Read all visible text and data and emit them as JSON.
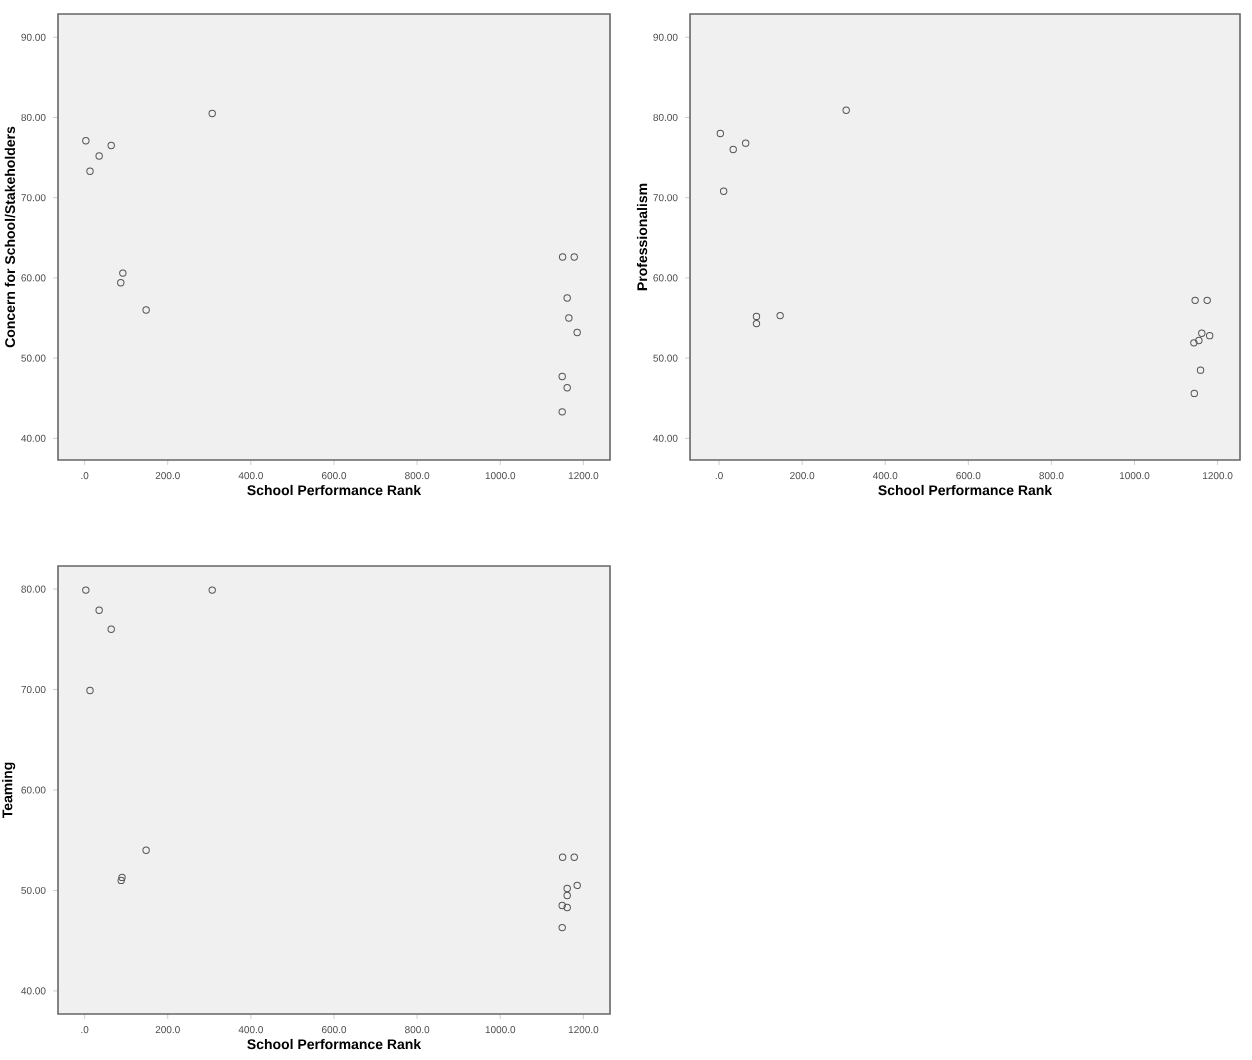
{
  "chart_data": [
    {
      "type": "scatter",
      "xlabel": "School Performance Rank",
      "ylabel": "Concern for School/Stakeholders",
      "marker": "circle",
      "color": "#555555",
      "x": [
        3,
        13,
        35,
        64,
        307,
        92,
        87,
        148,
        1150,
        1178,
        1161,
        1165,
        1185,
        1149,
        1161,
        1149
      ],
      "values": [
        77.1,
        73.3,
        75.2,
        76.5,
        80.5,
        60.6,
        59.4,
        56.0,
        62.6,
        62.6,
        57.5,
        55.0,
        53.2,
        47.7,
        46.3,
        43.3
      ],
      "xlim": [
        -64,
        1264
      ],
      "ylim": [
        37.3,
        92.9
      ],
      "xticks": [
        {
          "value": 0,
          "label": ".0"
        },
        {
          "value": 200,
          "label": "200.0"
        },
        {
          "value": 400,
          "label": "400.0"
        },
        {
          "value": 600,
          "label": "600.0"
        },
        {
          "value": 800,
          "label": "800.0"
        },
        {
          "value": 1000,
          "label": "1000.0"
        },
        {
          "value": 1200,
          "label": "1200.0"
        }
      ],
      "yticks": [
        {
          "value": 40,
          "label": "40.00"
        },
        {
          "value": 50,
          "label": "50.00"
        },
        {
          "value": 60,
          "label": "60.00"
        },
        {
          "value": 70,
          "label": "70.00"
        },
        {
          "value": 80,
          "label": "80.00"
        },
        {
          "value": 90,
          "label": "90.00"
        }
      ]
    },
    {
      "type": "scatter",
      "xlabel": "School Performance Rank",
      "ylabel": "Professionalism",
      "marker": "circle",
      "color": "#555555",
      "x": [
        3,
        11,
        34,
        64,
        306,
        90,
        90,
        147,
        1146,
        1175,
        1162,
        1155,
        1143,
        1181,
        1159,
        1144
      ],
      "values": [
        78.0,
        70.8,
        76.0,
        76.8,
        80.9,
        55.2,
        54.3,
        55.3,
        57.2,
        57.2,
        53.1,
        52.2,
        51.9,
        52.8,
        48.5,
        45.6
      ],
      "xlim": [
        -70,
        1254
      ],
      "ylim": [
        37.3,
        92.9
      ],
      "xticks": [
        {
          "value": 0,
          "label": ".0"
        },
        {
          "value": 200,
          "label": "200.0"
        },
        {
          "value": 400,
          "label": "400.0"
        },
        {
          "value": 600,
          "label": "600.0"
        },
        {
          "value": 800,
          "label": "800.0"
        },
        {
          "value": 1000,
          "label": "1000.0"
        },
        {
          "value": 1200,
          "label": "1200.0"
        }
      ],
      "yticks": [
        {
          "value": 40,
          "label": "40.00"
        },
        {
          "value": 50,
          "label": "50.00"
        },
        {
          "value": 60,
          "label": "60.00"
        },
        {
          "value": 70,
          "label": "70.00"
        },
        {
          "value": 80,
          "label": "80.00"
        },
        {
          "value": 90,
          "label": "90.00"
        }
      ]
    },
    {
      "type": "scatter",
      "xlabel": "School Performance Rank",
      "ylabel": "Teaming",
      "marker": "circle",
      "color": "#555555",
      "x": [
        3,
        13,
        35,
        64,
        307,
        90,
        88,
        148,
        1150,
        1178,
        1161,
        1185,
        1161,
        1149,
        1161,
        1149
      ],
      "values": [
        79.9,
        69.9,
        77.9,
        76.0,
        79.9,
        51.3,
        51.0,
        54.0,
        53.3,
        53.3,
        50.2,
        50.5,
        49.5,
        48.5,
        48.3,
        46.3
      ],
      "xlim": [
        -64,
        1264
      ],
      "ylim": [
        37.7,
        82.3
      ],
      "xticks": [
        {
          "value": 0,
          "label": ".0"
        },
        {
          "value": 200,
          "label": "200.0"
        },
        {
          "value": 400,
          "label": "400.0"
        },
        {
          "value": 600,
          "label": "600.0"
        },
        {
          "value": 800,
          "label": "800.0"
        },
        {
          "value": 1000,
          "label": "1000.0"
        },
        {
          "value": 1200,
          "label": "1200.0"
        }
      ],
      "yticks": [
        {
          "value": 40,
          "label": "40.00"
        },
        {
          "value": 50,
          "label": "50.00"
        },
        {
          "value": 60,
          "label": "60.00"
        },
        {
          "value": 70,
          "label": "70.00"
        },
        {
          "value": 80,
          "label": "80.00"
        }
      ]
    }
  ]
}
